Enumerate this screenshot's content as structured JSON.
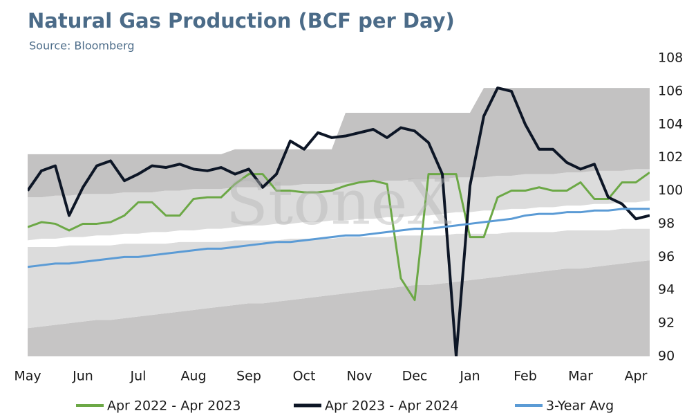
{
  "chart_data": {
    "type": "line",
    "title": "Natural Gas Production (BCF per Day)",
    "subtitle": "Source: Bloomberg",
    "watermark": "StoneX",
    "categories": [
      "May",
      null,
      null,
      null,
      "Jun",
      null,
      null,
      null,
      "Jul",
      null,
      null,
      null,
      "Aug",
      null,
      null,
      null,
      "Sep",
      null,
      null,
      null,
      "Oct",
      null,
      null,
      null,
      "Nov",
      null,
      null,
      null,
      "Dec",
      null,
      null,
      null,
      "Jan",
      null,
      null,
      null,
      "Feb",
      null,
      null,
      null,
      "Mar",
      null,
      null,
      null,
      "Apr",
      null
    ],
    "ylim": [
      90,
      108
    ],
    "yticks": [
      90,
      92,
      94,
      96,
      98,
      100,
      102,
      104,
      106,
      108
    ],
    "y_axis_side": "right",
    "grid": false,
    "legend": "bottom",
    "bands": {
      "colors": [
        "#c6c5c5",
        "#dcdcdc",
        "#ffffff",
        "#dcdcdc",
        "#c3c2c2"
      ],
      "levels": [
        [
          91.7,
          91.8,
          91.9,
          92.0,
          92.1,
          92.2,
          92.2,
          92.3,
          92.4,
          92.5,
          92.6,
          92.7,
          92.8,
          92.9,
          93.0,
          93.1,
          93.2,
          93.2,
          93.3,
          93.4,
          93.5,
          93.6,
          93.7,
          93.8,
          93.9,
          94.0,
          94.1,
          94.2,
          94.3,
          94.3,
          94.4,
          94.5,
          94.6,
          94.7,
          94.8,
          94.9,
          95.0,
          95.1,
          95.2,
          95.3,
          95.3,
          95.4,
          95.5,
          95.6,
          95.7,
          95.8
        ],
        [
          96.6,
          96.6,
          96.6,
          96.7,
          96.7,
          96.7,
          96.7,
          96.8,
          96.8,
          96.8,
          96.8,
          96.9,
          96.9,
          96.9,
          96.9,
          97.0,
          97.0,
          97.0,
          97.0,
          97.1,
          97.1,
          97.1,
          97.1,
          97.2,
          97.2,
          97.2,
          97.2,
          97.3,
          97.3,
          97.3,
          97.3,
          97.4,
          97.4,
          97.4,
          97.4,
          97.5,
          97.5,
          97.5,
          97.5,
          97.6,
          97.6,
          97.6,
          97.6,
          97.7,
          97.7,
          97.7
        ],
        [
          97.0,
          97.1,
          97.1,
          97.2,
          97.2,
          97.3,
          97.3,
          97.4,
          97.4,
          97.5,
          97.5,
          97.6,
          97.6,
          97.7,
          97.7,
          97.8,
          97.9,
          97.9,
          98.0,
          98.0,
          98.1,
          98.1,
          98.2,
          98.2,
          98.3,
          98.3,
          98.4,
          98.4,
          98.5,
          98.5,
          98.6,
          98.7,
          98.7,
          98.8,
          98.8,
          98.9,
          98.9,
          99.0,
          99.0,
          99.1,
          99.1,
          99.2,
          99.2,
          99.3,
          99.3,
          99.4
        ],
        [
          99.6,
          99.6,
          99.7,
          99.7,
          99.8,
          99.8,
          99.8,
          99.9,
          99.9,
          99.9,
          100.0,
          100.0,
          100.1,
          100.1,
          100.1,
          100.2,
          100.2,
          100.2,
          100.3,
          100.3,
          100.4,
          100.4,
          100.4,
          100.5,
          100.5,
          100.5,
          100.6,
          100.6,
          100.7,
          100.7,
          100.7,
          100.8,
          100.8,
          100.8,
          100.9,
          100.9,
          101.0,
          101.0,
          101.0,
          101.1,
          101.1,
          101.2,
          101.2,
          101.2,
          101.3,
          101.3
        ],
        [
          102.2,
          102.2,
          102.2,
          102.2,
          102.2,
          102.2,
          102.2,
          102.2,
          102.2,
          102.2,
          102.2,
          102.2,
          102.2,
          102.2,
          102.2,
          102.5,
          102.5,
          102.5,
          102.5,
          102.5,
          102.5,
          102.5,
          102.5,
          104.7,
          104.7,
          104.7,
          104.7,
          104.7,
          104.7,
          104.7,
          104.7,
          104.7,
          104.7,
          106.2,
          106.2,
          106.2,
          106.2,
          106.2,
          106.2,
          106.2,
          106.2,
          106.2,
          106.2,
          106.2,
          106.2,
          106.2
        ]
      ]
    },
    "series": [
      {
        "name": "Apr 2022 - Apr 2023",
        "color": "#6ca846",
        "values": [
          97.8,
          98.1,
          98.0,
          97.6,
          98.0,
          98.0,
          98.1,
          98.5,
          99.3,
          99.3,
          98.5,
          98.5,
          99.5,
          99.6,
          99.6,
          100.4,
          101.0,
          101.0,
          100.0,
          100.0,
          99.9,
          99.9,
          100.0,
          100.3,
          100.5,
          100.6,
          100.4,
          94.7,
          93.4,
          101.0,
          101.0,
          101.0,
          97.2,
          97.2,
          99.6,
          100.0,
          100.0,
          100.2,
          100.0,
          100.0,
          100.5,
          99.5,
          99.5,
          100.5,
          100.5,
          101.1
        ]
      },
      {
        "name": "Apr 2023 - Apr 2024",
        "color": "#0d1626",
        "values": [
          100.0,
          101.2,
          101.5,
          98.5,
          100.2,
          101.5,
          101.8,
          100.6,
          101.0,
          101.5,
          101.4,
          101.6,
          101.3,
          101.2,
          101.4,
          101.0,
          101.3,
          100.2,
          101.0,
          103.0,
          102.5,
          103.5,
          103.2,
          103.3,
          103.5,
          103.7,
          103.2,
          103.8,
          103.6,
          102.9,
          101.0,
          90.0,
          100.3,
          104.5,
          106.2,
          106.0,
          104.0,
          102.5,
          102.5,
          101.7,
          101.3,
          101.6,
          99.6,
          99.2,
          98.3,
          98.5
        ]
      },
      {
        "name": "3-Year Avg",
        "color": "#5b9bd5",
        "values": [
          95.4,
          95.5,
          95.6,
          95.6,
          95.7,
          95.8,
          95.9,
          96.0,
          96.0,
          96.1,
          96.2,
          96.3,
          96.4,
          96.5,
          96.5,
          96.6,
          96.7,
          96.8,
          96.9,
          96.9,
          97.0,
          97.1,
          97.2,
          97.3,
          97.3,
          97.4,
          97.5,
          97.6,
          97.7,
          97.7,
          97.8,
          97.9,
          98.0,
          98.1,
          98.2,
          98.3,
          98.5,
          98.6,
          98.6,
          98.7,
          98.7,
          98.8,
          98.8,
          98.9,
          98.9,
          98.9
        ]
      }
    ]
  }
}
